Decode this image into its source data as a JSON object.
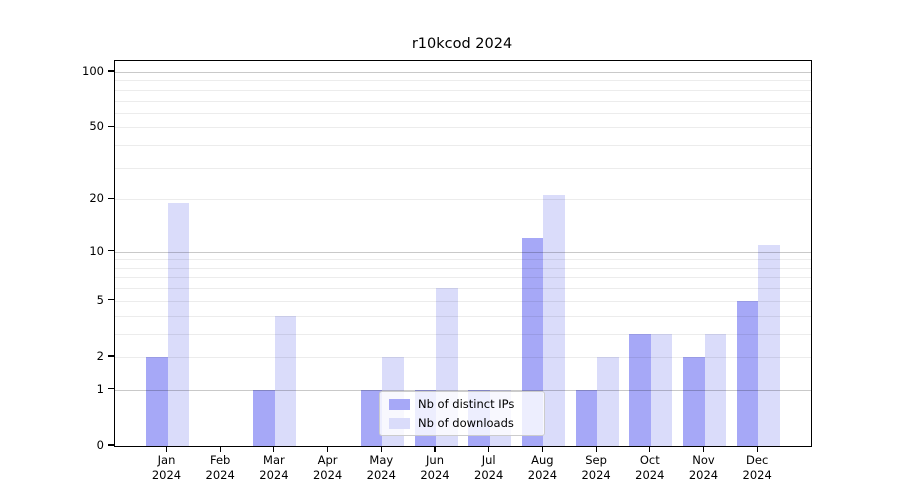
{
  "title": "r10kcod 2024",
  "chart_data": {
    "type": "bar",
    "title": "r10kcod 2024",
    "categories": [
      "Jan",
      "Feb",
      "Mar",
      "Apr",
      "May",
      "Jun",
      "Jul",
      "Aug",
      "Sep",
      "Oct",
      "Nov",
      "Dec"
    ],
    "year_label": "2024",
    "series": [
      {
        "name": "Nb of distinct IPs",
        "color": "#a6a8f7",
        "values": [
          2,
          0,
          1,
          0,
          1,
          1,
          1,
          12,
          1,
          3,
          2,
          5
        ]
      },
      {
        "name": "Nb of downloads",
        "color": "#dadcfa",
        "values": [
          19,
          0,
          4,
          0,
          2,
          6,
          1,
          21,
          2,
          3,
          3,
          11
        ]
      }
    ],
    "yscale": "log1p",
    "ylim": [
      0,
      114.6
    ],
    "yticks": [
      100,
      50,
      20,
      10,
      5,
      2,
      1,
      0
    ],
    "major_gridlines": [
      1,
      10,
      100
    ],
    "minor_gridlines": [
      2,
      3,
      4,
      5,
      6,
      7,
      8,
      9,
      20,
      30,
      40,
      50,
      60,
      70,
      80,
      90
    ],
    "grid_color_major": "#c6c6c6",
    "grid_color_minor": "#ebebeb",
    "legend_position": "lower center",
    "xlabel": "",
    "ylabel": ""
  }
}
